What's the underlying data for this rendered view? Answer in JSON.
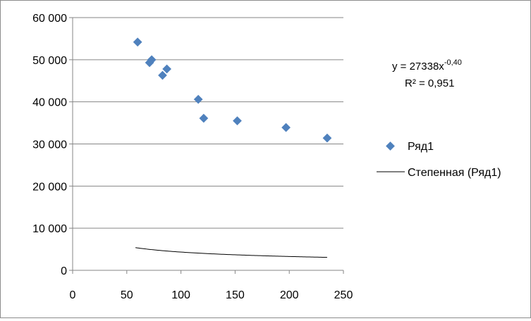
{
  "chart_data": {
    "type": "scatter",
    "title": "",
    "xlabel": "",
    "ylabel": "",
    "xlim": [
      0,
      250
    ],
    "ylim": [
      0,
      60000
    ],
    "x_ticks": [
      0,
      50,
      100,
      150,
      200,
      250
    ],
    "y_ticks": [
      0,
      10000,
      20000,
      30000,
      40000,
      50000,
      60000
    ],
    "x_tick_labels": [
      "0",
      "50",
      "100",
      "150",
      "200",
      "250"
    ],
    "y_tick_labels": [
      "0",
      "10 000",
      "20 000",
      "30 000",
      "40 000",
      "50 000",
      "60 000"
    ],
    "grid": "horizontal major gridlines",
    "legend_position": "right",
    "series": [
      {
        "name": "Ряд1",
        "marker": "diamond",
        "color": "#4f81bd",
        "x": [
          60,
          71,
          73,
          83,
          87,
          116,
          121,
          152,
          197,
          235
        ],
        "y": [
          54200,
          49300,
          50000,
          46300,
          47800,
          40600,
          36100,
          35500,
          33900,
          31400
        ]
      }
    ],
    "trendline": {
      "name": "Степенная (Ряд1)",
      "type": "power",
      "coefficient": 27338,
      "exponent": -0.4,
      "x_range": [
        58,
        235
      ],
      "color": "#000000",
      "equation_prefix": "y = 27338x",
      "equation_exponent": "-0,40",
      "r_squared_text": "R² = 0,951"
    },
    "legend": [
      {
        "label": "Ряд1",
        "symbol": "diamond-marker"
      },
      {
        "label": "Степенная (Ряд1)",
        "symbol": "line"
      }
    ]
  }
}
